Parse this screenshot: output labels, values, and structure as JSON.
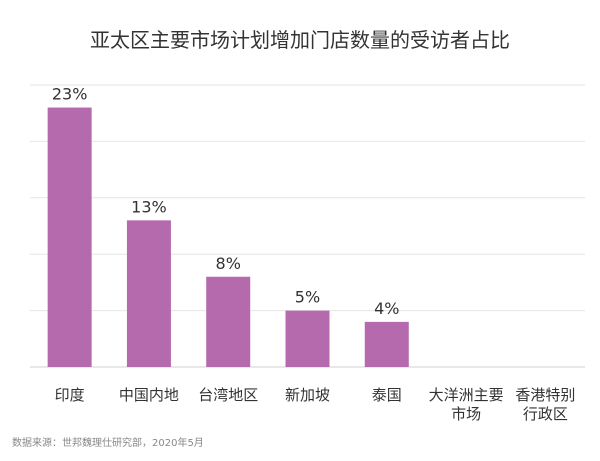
{
  "chart_data": {
    "type": "bar",
    "title": "亚太区主要市场计划增加门店数量的受访者占比",
    "categories": [
      [
        "印度"
      ],
      [
        "中国内地"
      ],
      [
        "台湾地区"
      ],
      [
        "新加坡"
      ],
      [
        "泰国"
      ],
      [
        "大洋洲主要",
        "市场"
      ],
      [
        "香港特别",
        "行政区"
      ]
    ],
    "values": [
      23,
      13,
      8,
      5,
      4,
      0,
      0
    ],
    "value_labels": [
      "23%",
      "13%",
      "8%",
      "5%",
      "4%",
      "",
      ""
    ],
    "unit": "%",
    "ylim": [
      0,
      25
    ],
    "grid": true,
    "legend": "none",
    "bar_color": "#b56aad",
    "source": "数据来源：世邦魏理仕研究部，2020年5月"
  }
}
